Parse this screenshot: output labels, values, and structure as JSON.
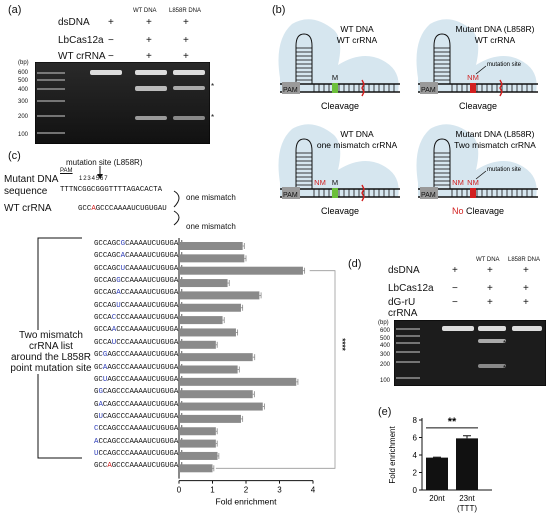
{
  "panels": {
    "a": {
      "letter": "(a)",
      "rows": [
        {
          "label": "dsDNA",
          "marks": [
            "+",
            "+",
            "+"
          ]
        },
        {
          "label": "LbCas12a",
          "marks": [
            "−",
            "+",
            "+"
          ]
        },
        {
          "label": "WT crRNA",
          "marks": [
            "−",
            "+",
            "+"
          ]
        }
      ],
      "lane_labels": [
        "WT DNA",
        "L858R DNA"
      ],
      "ladder_unit": "(bp)",
      "ladder": [
        "600",
        "500",
        "400",
        "300",
        "200",
        "100"
      ]
    },
    "b": {
      "letter": "(b)",
      "schemes": [
        {
          "line1": "WT DNA",
          "line2": "WT crRNA",
          "result": "Cleavage"
        },
        {
          "line1": "Mutant DNA (L858R)",
          "line2": "WT crRNA",
          "result": "Cleavage",
          "note": "mutation site"
        },
        {
          "line1": "WT DNA",
          "line2": "one mismatch crRNA",
          "result": "Cleavage"
        },
        {
          "line1": "Mutant DNA (L858R)",
          "line2": "Two mismatch crRNA",
          "result_no": "No",
          "result": " Cleavage",
          "note": "mutation site"
        }
      ],
      "pam": "PAM",
      "m": "M",
      "nm": "NM"
    },
    "c": {
      "letter": "(c)",
      "mutation_site": "mutation site (L858R)",
      "mutant_label_1": "Mutant DNA",
      "mutant_label_2": "sequence",
      "pam": "PAM",
      "positions": "1 2 3 4 5 6 7",
      "mutant_seq": "TTTNCGGCGGGTTTTAGACACTA",
      "wt_crrna_label": "WT crRNA",
      "wt_crrna": "GCCAGCCCAAAAUCUGUGAU",
      "one_mismatch": "one mismatch",
      "side_label": [
        "Two mismatch",
        "crRNA list",
        "around the L858R",
        "point mutation site"
      ],
      "significance": "****",
      "xlabel": "Fold enrichment",
      "xticks": [
        "0",
        "1",
        "2",
        "3",
        "4"
      ]
    },
    "d": {
      "letter": "(d)",
      "rows": [
        {
          "label": "dsDNA",
          "marks": [
            "+",
            "+",
            "+"
          ]
        },
        {
          "label": "LbCas12a",
          "marks": [
            "−",
            "+",
            "+"
          ]
        },
        {
          "label": "dG-rU",
          "marks": [
            "−",
            "+",
            "+"
          ]
        },
        {
          "label": "crRNA",
          "marks": [
            "",
            "",
            ""
          ]
        }
      ],
      "lane_labels": [
        "WT DNA",
        "L858R DNA"
      ],
      "ladder_unit": "(bp)",
      "ladder": [
        "600",
        "500",
        "400",
        "300",
        "200",
        "100"
      ]
    },
    "e": {
      "letter": "(e)",
      "ylabel": "Fold enrichment",
      "significance": "**",
      "yticks": [
        "0",
        "2",
        "4",
        "6",
        "8"
      ]
    }
  },
  "chart_data": [
    {
      "type": "bar",
      "orientation": "horizontal",
      "categories": [
        "GCCAGCGCAAAAUCUGUGAU",
        "GCCAGCACAAAAUCUGUGAU",
        "GCCAGCUCAAAAUCUGUGAU",
        "GCCAGGCCAAAAUCUGUGAU",
        "GCCAGACCAAAAUCUGUGAU",
        "GCCAGUCCAAAAUCUGUGAU",
        "GCCACCCCAAAAUCUGUGAU",
        "GCCAACCCAAAAUCUGUGAU",
        "GCCAUCCCAAAAUCUGUGAU",
        "GCGAGCCCAAAAUCUGUGAU",
        "GCAAGCCCAAAAUCUGUGAU",
        "GCUAGCCCAAAAUCUGUGAU",
        "GGCAGCCCAAAAUCUGUGAU",
        "GACAGCCCAAAAUCUGUGAU",
        "GUCAGCCCAAAAUCUGUGAU",
        "CCCAGCCCAAAAUCUGUGAU",
        "ACCAGCCCAAAAUCUGUGAU",
        "UCCAGCCCAAAAUCUGUGAU",
        "GCCAGCCCAAAAUCUGUGAU"
      ],
      "values": [
        1.9,
        1.95,
        3.7,
        1.45,
        2.4,
        1.85,
        1.3,
        1.7,
        1.1,
        2.2,
        1.75,
        3.5,
        2.2,
        2.5,
        1.85,
        1.1,
        1.1,
        1.15,
        1.0
      ],
      "errors": [
        0.05,
        0.05,
        0.05,
        0.05,
        0.05,
        0.05,
        0.05,
        0.05,
        0.04,
        0.06,
        0.05,
        0.05,
        0.05,
        0.05,
        0.05,
        0.04,
        0.04,
        0.04,
        0.04
      ],
      "xlabel": "Fold enrichment",
      "xlim": [
        0,
        4
      ]
    },
    {
      "type": "bar",
      "categories": [
        "20nt",
        "23nt\n(TTT)"
      ],
      "cat_line1": [
        "20nt",
        "23nt"
      ],
      "cat_line2": [
        "",
        "(TTT)"
      ],
      "values": [
        3.7,
        5.9
      ],
      "errors": [
        0.05,
        0.3
      ],
      "ylabel": "Fold enrichment",
      "ylim": [
        0,
        8
      ]
    }
  ],
  "crrna_markup": [
    [
      [
        0,
        "GCCAGC",
        ""
      ],
      [
        6,
        "G",
        "blue"
      ],
      [
        7,
        "CAAAAUCUGUGAU",
        ""
      ]
    ],
    [
      [
        0,
        "GCCAGC",
        ""
      ],
      [
        6,
        "A",
        "blue"
      ],
      [
        7,
        "CAAAAUCUGUGAU",
        ""
      ]
    ],
    [
      [
        0,
        "GCCAGC",
        ""
      ],
      [
        6,
        "U",
        "blue"
      ],
      [
        7,
        "CAAAAUCUGUGAU",
        ""
      ]
    ],
    [
      [
        0,
        "GCCAG",
        ""
      ],
      [
        5,
        "G",
        "blue"
      ],
      [
        6,
        "CCAAAAUCUGUGAU",
        ""
      ]
    ],
    [
      [
        0,
        "GCCAG",
        ""
      ],
      [
        5,
        "A",
        "blue"
      ],
      [
        6,
        "CCAAAAUCUGUGAU",
        ""
      ]
    ],
    [
      [
        0,
        "GCCAG",
        ""
      ],
      [
        5,
        "U",
        "blue"
      ],
      [
        6,
        "CCAAAAUCUGUGAU",
        ""
      ]
    ],
    [
      [
        0,
        "GCCA",
        ""
      ],
      [
        4,
        "C",
        "blue"
      ],
      [
        5,
        "CCCAAAAUCUGUGAU",
        ""
      ]
    ],
    [
      [
        0,
        "GCCA",
        ""
      ],
      [
        4,
        "A",
        "blue"
      ],
      [
        5,
        "CCCAAAAUCUGUGAU",
        ""
      ]
    ],
    [
      [
        0,
        "GCCA",
        ""
      ],
      [
        4,
        "U",
        "blue"
      ],
      [
        5,
        "CCCAAAAUCUGUGAU",
        ""
      ]
    ],
    [
      [
        0,
        "GC",
        ""
      ],
      [
        2,
        "G",
        "blue"
      ],
      [
        3,
        "AGCCCAAAAUCUGUGAU",
        ""
      ]
    ],
    [
      [
        0,
        "GC",
        ""
      ],
      [
        2,
        "A",
        "blue"
      ],
      [
        3,
        "AGCCCAAAAUCUGUGAU",
        ""
      ]
    ],
    [
      [
        0,
        "GC",
        ""
      ],
      [
        2,
        "U",
        "blue"
      ],
      [
        3,
        "AGCCCAAAAUCUGUGAU",
        ""
      ]
    ],
    [
      [
        0,
        "G",
        ""
      ],
      [
        1,
        "G",
        "blue"
      ],
      [
        2,
        "CAGCCCAAAAUCUGUGAU",
        ""
      ]
    ],
    [
      [
        0,
        "G",
        ""
      ],
      [
        1,
        "A",
        "blue"
      ],
      [
        2,
        "CAGCCCAAAAUCUGUGAU",
        ""
      ]
    ],
    [
      [
        0,
        "G",
        ""
      ],
      [
        1,
        "U",
        "blue"
      ],
      [
        2,
        "CAGCCCAAAAUCUGUGAU",
        ""
      ]
    ],
    [
      [
        0,
        "C",
        "blue"
      ],
      [
        1,
        "CCAGCCCAAAAUCUGUGAU",
        ""
      ]
    ],
    [
      [
        0,
        "A",
        "blue"
      ],
      [
        1,
        "CCAGCCCAAAAUCUGUGAU",
        ""
      ]
    ],
    [
      [
        0,
        "U",
        "blue"
      ],
      [
        1,
        "CCAGCCCAAAAUCUGUGAU",
        ""
      ]
    ],
    [
      [
        0,
        "GCC",
        ""
      ],
      [
        3,
        "A",
        "red"
      ],
      [
        4,
        "GCCCAAAAUCUGUGAU",
        ""
      ]
    ]
  ]
}
